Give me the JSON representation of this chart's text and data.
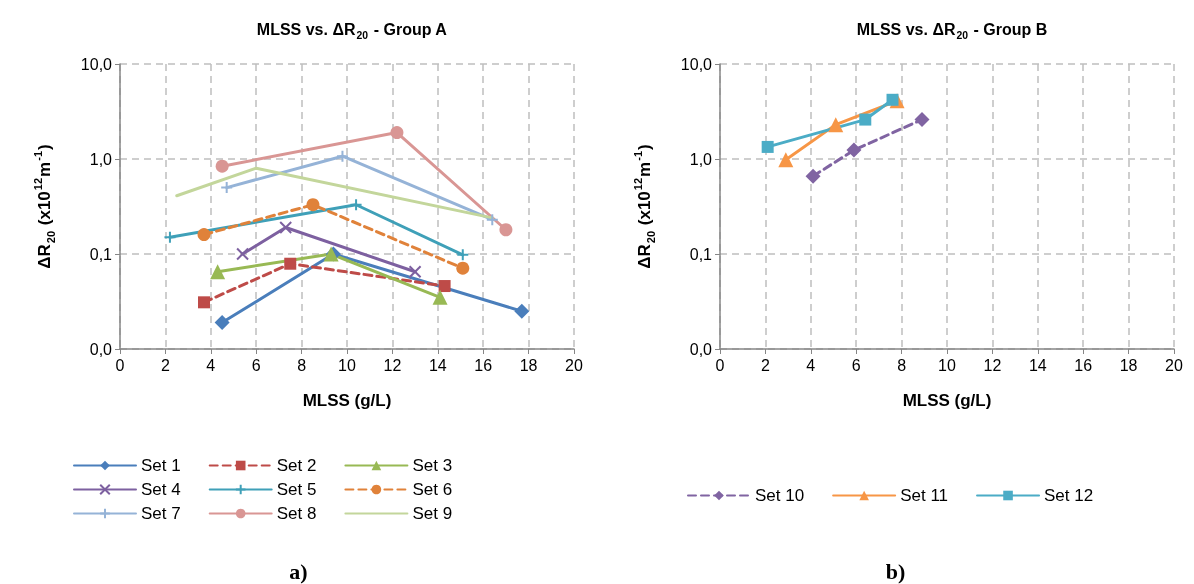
{
  "chart_data": [
    {
      "type": "line",
      "title": "MLSS vs. ΔR$_{20}$ - Group A",
      "xlabel": "MLSS (g/L)",
      "ylabel": "ΔR$_{20}$ (x10$^{12}$m$^{-1}$)",
      "xlim": [
        0,
        20
      ],
      "xticks": [
        0,
        2,
        4,
        6,
        8,
        10,
        12,
        14,
        16,
        18,
        20
      ],
      "ylim": [
        0.01,
        10
      ],
      "yticks": [
        {
          "value": 0.01,
          "label": "0,0"
        },
        {
          "value": 0.1,
          "label": "0,1"
        },
        {
          "value": 1,
          "label": "1,0"
        },
        {
          "value": 10,
          "label": "10,0"
        }
      ],
      "log": "y",
      "grid": true,
      "legend": "bottom",
      "annotations": [
        "a)"
      ],
      "series": [
        {
          "name": "Set 1",
          "color": "#4a7ebb",
          "marker": "diamond",
          "line_style": "solid",
          "x": [
            4.5,
            9.4,
            17.7
          ],
          "values": [
            0.019,
            0.1,
            0.025
          ]
        },
        {
          "name": "Set 2",
          "color": "#be4b48",
          "marker": "square",
          "line_style": "dashed",
          "x": [
            3.7,
            7.5,
            14.3
          ],
          "values": [
            0.031,
            0.079,
            0.046
          ]
        },
        {
          "name": "Set 3",
          "color": "#98b954",
          "marker": "triangle",
          "line_style": "solid",
          "x": [
            4.3,
            9.3,
            14.1
          ],
          "values": [
            0.065,
            0.1,
            0.035
          ]
        },
        {
          "name": "Set 4",
          "color": "#7d60a0",
          "marker": "x",
          "line_style": "solid",
          "x": [
            5.4,
            7.3,
            13.0
          ],
          "values": [
            0.1,
            0.19,
            0.065
          ]
        },
        {
          "name": "Set 5",
          "color": "#3fa0b8",
          "marker": "cross",
          "line_style": "solid",
          "x": [
            2.2,
            10.4,
            15.1
          ],
          "values": [
            0.15,
            0.33,
            0.098
          ]
        },
        {
          "name": "Set 6",
          "color": "#e0823a",
          "marker": "circle",
          "line_style": "dashed",
          "x": [
            3.7,
            8.5,
            15.1
          ],
          "values": [
            0.16,
            0.33,
            0.071
          ]
        },
        {
          "name": "Set 7",
          "color": "#95b3d7",
          "marker": "cross",
          "line_style": "solid",
          "x": [
            4.7,
            9.8,
            16.4
          ],
          "values": [
            0.5,
            1.07,
            0.23
          ]
        },
        {
          "name": "Set 8",
          "color": "#d99694",
          "marker": "circle",
          "line_style": "solid",
          "x": [
            4.5,
            12.2,
            17.0
          ],
          "values": [
            0.84,
            1.9,
            0.18
          ]
        },
        {
          "name": "Set 9",
          "color": "#c3d69b",
          "marker": "none",
          "line_style": "solid",
          "x": [
            2.5,
            6.0,
            16.4
          ],
          "values": [
            0.41,
            0.8,
            0.24
          ]
        }
      ]
    },
    {
      "type": "line",
      "title": "MLSS vs. ΔR$_{20}$ - Group B",
      "xlabel": "MLSS (g/L)",
      "ylabel": "ΔR$_{20}$ (x10$^{12}$m$^{-1}$)",
      "xlim": [
        0,
        20
      ],
      "xticks": [
        0,
        2,
        4,
        6,
        8,
        10,
        12,
        14,
        16,
        18,
        20
      ],
      "ylim": [
        0.01,
        10
      ],
      "yticks": [
        {
          "value": 0.01,
          "label": "0,0"
        },
        {
          "value": 0.1,
          "label": "0,1"
        },
        {
          "value": 1,
          "label": "1,0"
        },
        {
          "value": 10,
          "label": "10,0"
        }
      ],
      "log": "y",
      "grid": true,
      "legend": "bottom",
      "annotations": [
        "b)"
      ],
      "series": [
        {
          "name": "Set 10",
          "color": "#8064a2",
          "marker": "diamond",
          "line_style": "dashed",
          "x": [
            4.1,
            5.9,
            8.9
          ],
          "values": [
            0.66,
            1.24,
            2.6
          ]
        },
        {
          "name": "Set 11",
          "color": "#f79646",
          "marker": "triangle",
          "line_style": "solid",
          "x": [
            2.9,
            5.1,
            7.8
          ],
          "values": [
            0.98,
            2.3,
            4.1
          ]
        },
        {
          "name": "Set 12",
          "color": "#4bacc6",
          "marker": "square",
          "line_style": "solid",
          "x": [
            2.1,
            6.4,
            7.6
          ],
          "values": [
            1.34,
            2.6,
            4.2
          ]
        }
      ]
    }
  ]
}
